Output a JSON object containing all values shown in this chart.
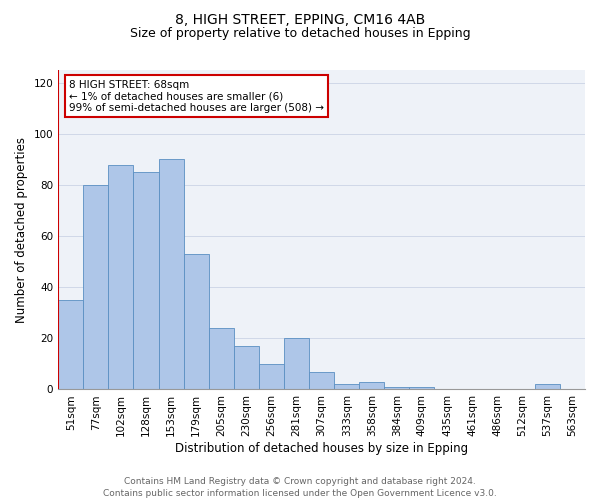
{
  "title1": "8, HIGH STREET, EPPING, CM16 4AB",
  "title2": "Size of property relative to detached houses in Epping",
  "xlabel": "Distribution of detached houses by size in Epping",
  "ylabel": "Number of detached properties",
  "categories": [
    "51sqm",
    "77sqm",
    "102sqm",
    "128sqm",
    "153sqm",
    "179sqm",
    "205sqm",
    "230sqm",
    "256sqm",
    "281sqm",
    "307sqm",
    "333sqm",
    "358sqm",
    "384sqm",
    "409sqm",
    "435sqm",
    "461sqm",
    "486sqm",
    "512sqm",
    "537sqm",
    "563sqm"
  ],
  "values": [
    35,
    80,
    88,
    85,
    90,
    53,
    24,
    17,
    10,
    20,
    7,
    2,
    3,
    1,
    1,
    0,
    0,
    0,
    0,
    2,
    0
  ],
  "bar_color": "#aec6e8",
  "bar_edge_color": "#5a8fc2",
  "highlight_color": "#cc0000",
  "annotation_text": "8 HIGH STREET: 68sqm\n← 1% of detached houses are smaller (6)\n99% of semi-detached houses are larger (508) →",
  "annotation_box_color": "#ffffff",
  "annotation_box_edge": "#cc0000",
  "ylim": [
    0,
    125
  ],
  "yticks": [
    0,
    20,
    40,
    60,
    80,
    100,
    120
  ],
  "grid_color": "#d0d8e8",
  "background_color": "#eef2f8",
  "footer_text": "Contains HM Land Registry data © Crown copyright and database right 2024.\nContains public sector information licensed under the Open Government Licence v3.0.",
  "title1_fontsize": 10,
  "title2_fontsize": 9,
  "xlabel_fontsize": 8.5,
  "ylabel_fontsize": 8.5,
  "tick_fontsize": 7.5,
  "annotation_fontsize": 7.5,
  "footer_fontsize": 6.5
}
